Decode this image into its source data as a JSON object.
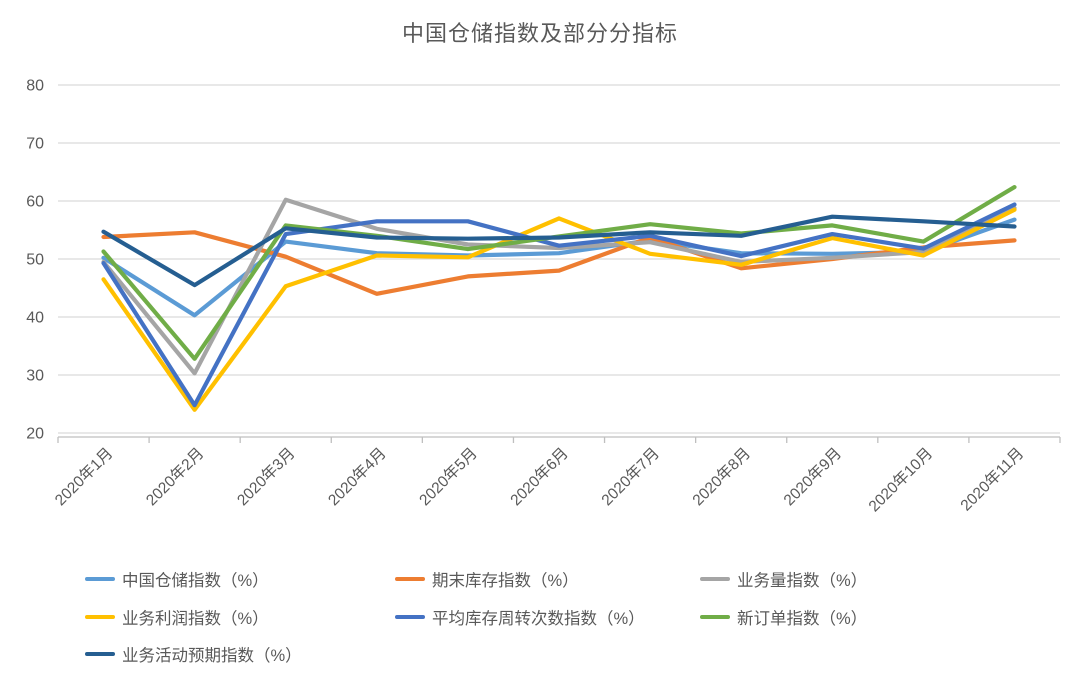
{
  "title": "中国仓储指数及部分分指标",
  "chart_data": {
    "type": "line",
    "categories": [
      "2020年1月",
      "2020年2月",
      "2020年3月",
      "2020年4月",
      "2020年5月",
      "2020年6月",
      "2020年7月",
      "2020年8月",
      "2020年9月",
      "2020年10月",
      "2020年11月"
    ],
    "series": [
      {
        "name": "中国仓储指数（%）",
        "color": "#5B9BD5",
        "values": [
          50.2,
          40.3,
          53.0,
          51.0,
          50.6,
          51.0,
          53.2,
          51.0,
          50.9,
          51.2,
          56.8
        ]
      },
      {
        "name": "期末库存指数（%）",
        "color": "#ED7D31",
        "values": [
          53.8,
          54.6,
          50.4,
          44.0,
          47.0,
          48.0,
          53.7,
          48.4,
          50.0,
          52.0,
          53.2
        ]
      },
      {
        "name": "业务量指数（%）",
        "color": "#A5A5A5",
        "values": [
          49.5,
          30.3,
          60.2,
          55.2,
          52.5,
          51.9,
          52.9,
          49.5,
          50.2,
          51.2,
          58.8
        ]
      },
      {
        "name": "业务利润指数（%）",
        "color": "#FFC000",
        "values": [
          46.5,
          24.0,
          45.3,
          50.6,
          50.3,
          57.0,
          50.9,
          49.0,
          53.6,
          50.6,
          58.5
        ]
      },
      {
        "name": "平均库存周转次数指数（%）",
        "color": "#4472C4",
        "values": [
          49.3,
          24.8,
          54.3,
          56.5,
          56.5,
          52.3,
          54.0,
          50.5,
          54.3,
          51.8,
          59.4
        ]
      },
      {
        "name": "新订单指数（%）",
        "color": "#70AD47",
        "values": [
          51.3,
          32.8,
          55.8,
          54.0,
          51.7,
          53.9,
          56.0,
          54.4,
          55.8,
          53.0,
          62.4
        ]
      },
      {
        "name": "业务活动预期指数（%）",
        "color": "#255E91",
        "values": [
          54.7,
          45.5,
          55.3,
          53.7,
          53.5,
          53.7,
          54.6,
          54.0,
          57.3,
          56.5,
          55.6
        ]
      }
    ],
    "title": "中国仓储指数及部分分指标",
    "xlabel": "",
    "ylabel": "",
    "ylim": [
      20,
      80
    ],
    "yticks": [
      20,
      30,
      40,
      50,
      60,
      70,
      80
    ],
    "grid": true,
    "legend_position": "bottom"
  },
  "colors": {
    "title_text": "#595959",
    "axis_text": "#595959",
    "gridline": "#D9D9D9",
    "axis_line": "#BFBFBF",
    "background": "#FFFFFF"
  }
}
